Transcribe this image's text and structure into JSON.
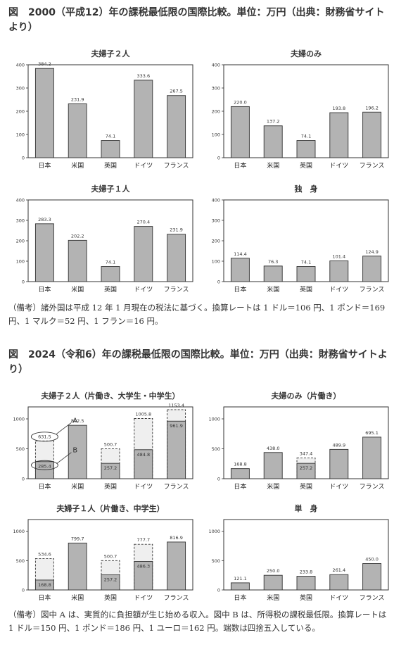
{
  "figure1": {
    "title": "図　2000（平成12）年の課税最低限の国際比較。単位：万円（出典：財務省サイトより）",
    "note": "（備考）諸外国は平成 12 年 1 月現在の税法に基づく。換算レートは 1 ドル＝106 円、1 ポンド＝169 円、1 マルク＝52 円、1 フラン＝16 円。"
  },
  "figure2": {
    "title": "図　2024（令和6）年の課税最低限の国際比較。単位：万円（出典：財務省サイトより）",
    "note": "（備考）図中 A は、実質的に負担額が生じ始める収入。図中 B は、所得税の課税最低限。換算レートは 1 ドル＝150 円、1 ポンド＝186 円、1 ユーロ＝162 円。端数は四捨五入している。"
  },
  "labels": {
    "A": "A",
    "B": "B"
  },
  "colors": {
    "bar": "#b3b3b3",
    "light": "#efefef",
    "axis": "#333333"
  },
  "chart_data": [
    {
      "type": "bar",
      "title": "夫婦子２人",
      "categories": [
        "日本",
        "米国",
        "英国",
        "ドイツ",
        "フランス"
      ],
      "values": [
        384.2,
        231.9,
        74.1,
        333.6,
        267.5
      ],
      "labels": [
        "384.2",
        "231.9",
        "74.1",
        "333.6",
        "267.5"
      ],
      "ylim": [
        0,
        400
      ],
      "yticks": [
        0,
        100,
        200,
        300,
        400
      ]
    },
    {
      "type": "bar",
      "title": "夫婦のみ",
      "categories": [
        "日本",
        "米国",
        "英国",
        "ドイツ",
        "フランス"
      ],
      "values": [
        220.0,
        137.2,
        74.1,
        193.8,
        196.2
      ],
      "labels": [
        "220.0",
        "137.2",
        "74.1",
        "193.8",
        "196.2"
      ],
      "ylim": [
        0,
        400
      ],
      "yticks": [
        0,
        100,
        200,
        300,
        400
      ]
    },
    {
      "type": "bar",
      "title": "夫婦子１人",
      "categories": [
        "日本",
        "米国",
        "英国",
        "ドイツ",
        "フランス"
      ],
      "values": [
        283.3,
        202.2,
        74.1,
        270.4,
        231.9
      ],
      "labels": [
        "283.3",
        "202.2",
        "74.1",
        "270.4",
        "231.9"
      ],
      "ylim": [
        0,
        400
      ],
      "yticks": [
        0,
        100,
        200,
        300,
        400
      ]
    },
    {
      "type": "bar",
      "title": "独　身",
      "categories": [
        "日本",
        "米国",
        "英国",
        "ドイツ",
        "フランス"
      ],
      "values": [
        114.4,
        76.3,
        74.1,
        101.4,
        124.9
      ],
      "labels": [
        "114.4",
        "76.3",
        "74.1",
        "101.4",
        "124.9"
      ],
      "ylim": [
        0,
        400
      ],
      "yticks": [
        0,
        100,
        200,
        300,
        400
      ]
    },
    {
      "type": "bar",
      "title": "夫婦子２人（片働き、大学生・中学生）",
      "categories": [
        "日本",
        "米国",
        "英国",
        "ドイツ",
        "フランス"
      ],
      "values": [
        285.4,
        892.5,
        257.2,
        484.8,
        961.9
      ],
      "labels": [
        "285.4",
        "892.5",
        "257.2",
        "484.8",
        "961.9"
      ],
      "upper": [
        631.5,
        null,
        500.7,
        1005.8,
        1153.4
      ],
      "upper_labels": [
        "631.5",
        "",
        "500.7",
        "1005.8",
        "1153.4"
      ],
      "annotated": true,
      "ylim": [
        0,
        1200
      ],
      "yticks": [
        0,
        500,
        1000
      ]
    },
    {
      "type": "bar",
      "title": "夫婦のみ（片働き）",
      "categories": [
        "日本",
        "米国",
        "英国",
        "ドイツ",
        "フランス"
      ],
      "values": [
        168.8,
        438.0,
        257.2,
        489.9,
        695.1
      ],
      "labels": [
        "168.8",
        "438.0",
        "257.2",
        "489.9",
        "695.1"
      ],
      "upper": [
        null,
        null,
        347.4,
        null,
        null
      ],
      "upper_labels": [
        "",
        "",
        "347.4",
        "",
        ""
      ],
      "ylim": [
        0,
        1200
      ],
      "yticks": [
        0,
        500,
        1000
      ]
    },
    {
      "type": "bar",
      "title": "夫婦子１人（片働き、中学生）",
      "categories": [
        "日本",
        "米国",
        "英国",
        "ドイツ",
        "フランス"
      ],
      "values": [
        168.8,
        799.7,
        257.2,
        486.3,
        816.9
      ],
      "labels": [
        "168.8",
        "799.7",
        "257.2",
        "486.3",
        "816.9"
      ],
      "upper": [
        534.6,
        null,
        500.7,
        777.7,
        null
      ],
      "upper_labels": [
        "534.6",
        "",
        "500.7",
        "777.7",
        ""
      ],
      "ylim": [
        0,
        1200
      ],
      "yticks": [
        0,
        500,
        1000
      ]
    },
    {
      "type": "bar",
      "title": "単　身",
      "categories": [
        "日本",
        "米国",
        "英国",
        "ドイツ",
        "フランス"
      ],
      "values": [
        121.1,
        250.0,
        233.8,
        261.4,
        450.0
      ],
      "labels": [
        "121.1",
        "250.0",
        "233.8",
        "261.4",
        "450.0"
      ],
      "ylim": [
        0,
        1200
      ],
      "yticks": [
        0,
        500,
        1000
      ]
    }
  ]
}
